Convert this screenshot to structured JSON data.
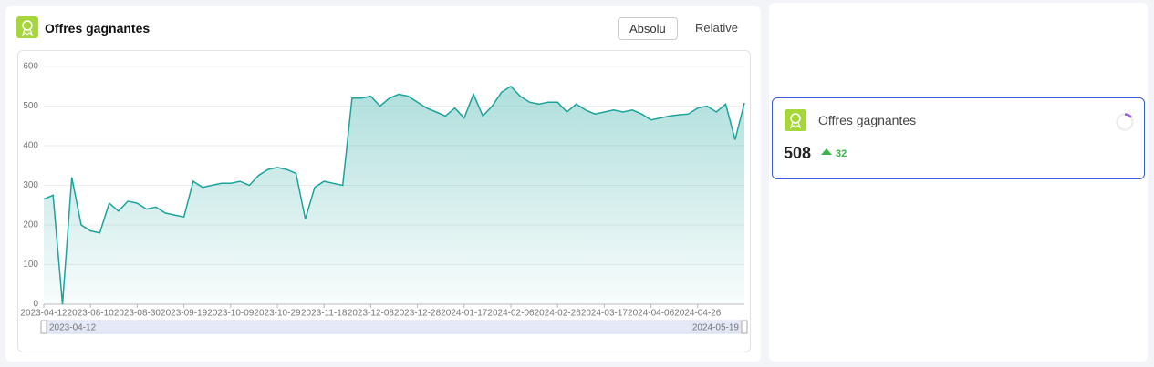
{
  "panel": {
    "title": "Offres gagnantes",
    "buttons": [
      "Absolu",
      "Relative"
    ]
  },
  "chart_data": {
    "type": "area",
    "color": "#1ba39c",
    "categories": [
      "2023-04-12",
      null,
      null,
      null,
      null,
      "2023-08-10",
      null,
      null,
      null,
      null,
      "2023-08-30",
      null,
      null,
      null,
      null,
      "2023-09-19",
      null,
      null,
      null,
      null,
      "2023-10-09",
      null,
      null,
      null,
      null,
      "2023-10-29",
      null,
      null,
      null,
      null,
      "2023-11-18",
      null,
      null,
      null,
      null,
      "2023-12-08",
      null,
      null,
      null,
      null,
      "2023-12-28",
      null,
      null,
      null,
      null,
      "2024-01-17",
      null,
      null,
      null,
      null,
      "2024-02-06",
      null,
      null,
      null,
      null,
      "2024-02-26",
      null,
      null,
      null,
      null,
      "2024-03-17",
      null,
      null,
      null,
      null,
      "2024-04-06",
      null,
      null,
      null,
      null,
      "2024-04-26",
      null,
      null,
      null,
      null,
      null
    ],
    "values": [
      265,
      275,
      0,
      320,
      200,
      185,
      180,
      255,
      235,
      260,
      255,
      240,
      245,
      230,
      225,
      220,
      310,
      295,
      300,
      305,
      305,
      310,
      300,
      325,
      340,
      345,
      340,
      330,
      215,
      295,
      310,
      305,
      300,
      520,
      520,
      525,
      500,
      520,
      530,
      525,
      510,
      495,
      485,
      475,
      495,
      470,
      530,
      475,
      500,
      535,
      550,
      525,
      510,
      505,
      510,
      510,
      485,
      505,
      490,
      480,
      485,
      490,
      485,
      490,
      480,
      465,
      470,
      475,
      478,
      480,
      495,
      500,
      485,
      505,
      415,
      508
    ],
    "ylim": [
      0,
      600
    ],
    "yticks": [
      0,
      100,
      200,
      300,
      400,
      500,
      600
    ],
    "grid": true,
    "range_start": "2023-04-12",
    "range_end": "2024-05-19"
  },
  "kpi": {
    "title": "Offres gagnantes",
    "value": "508",
    "delta": "32"
  }
}
